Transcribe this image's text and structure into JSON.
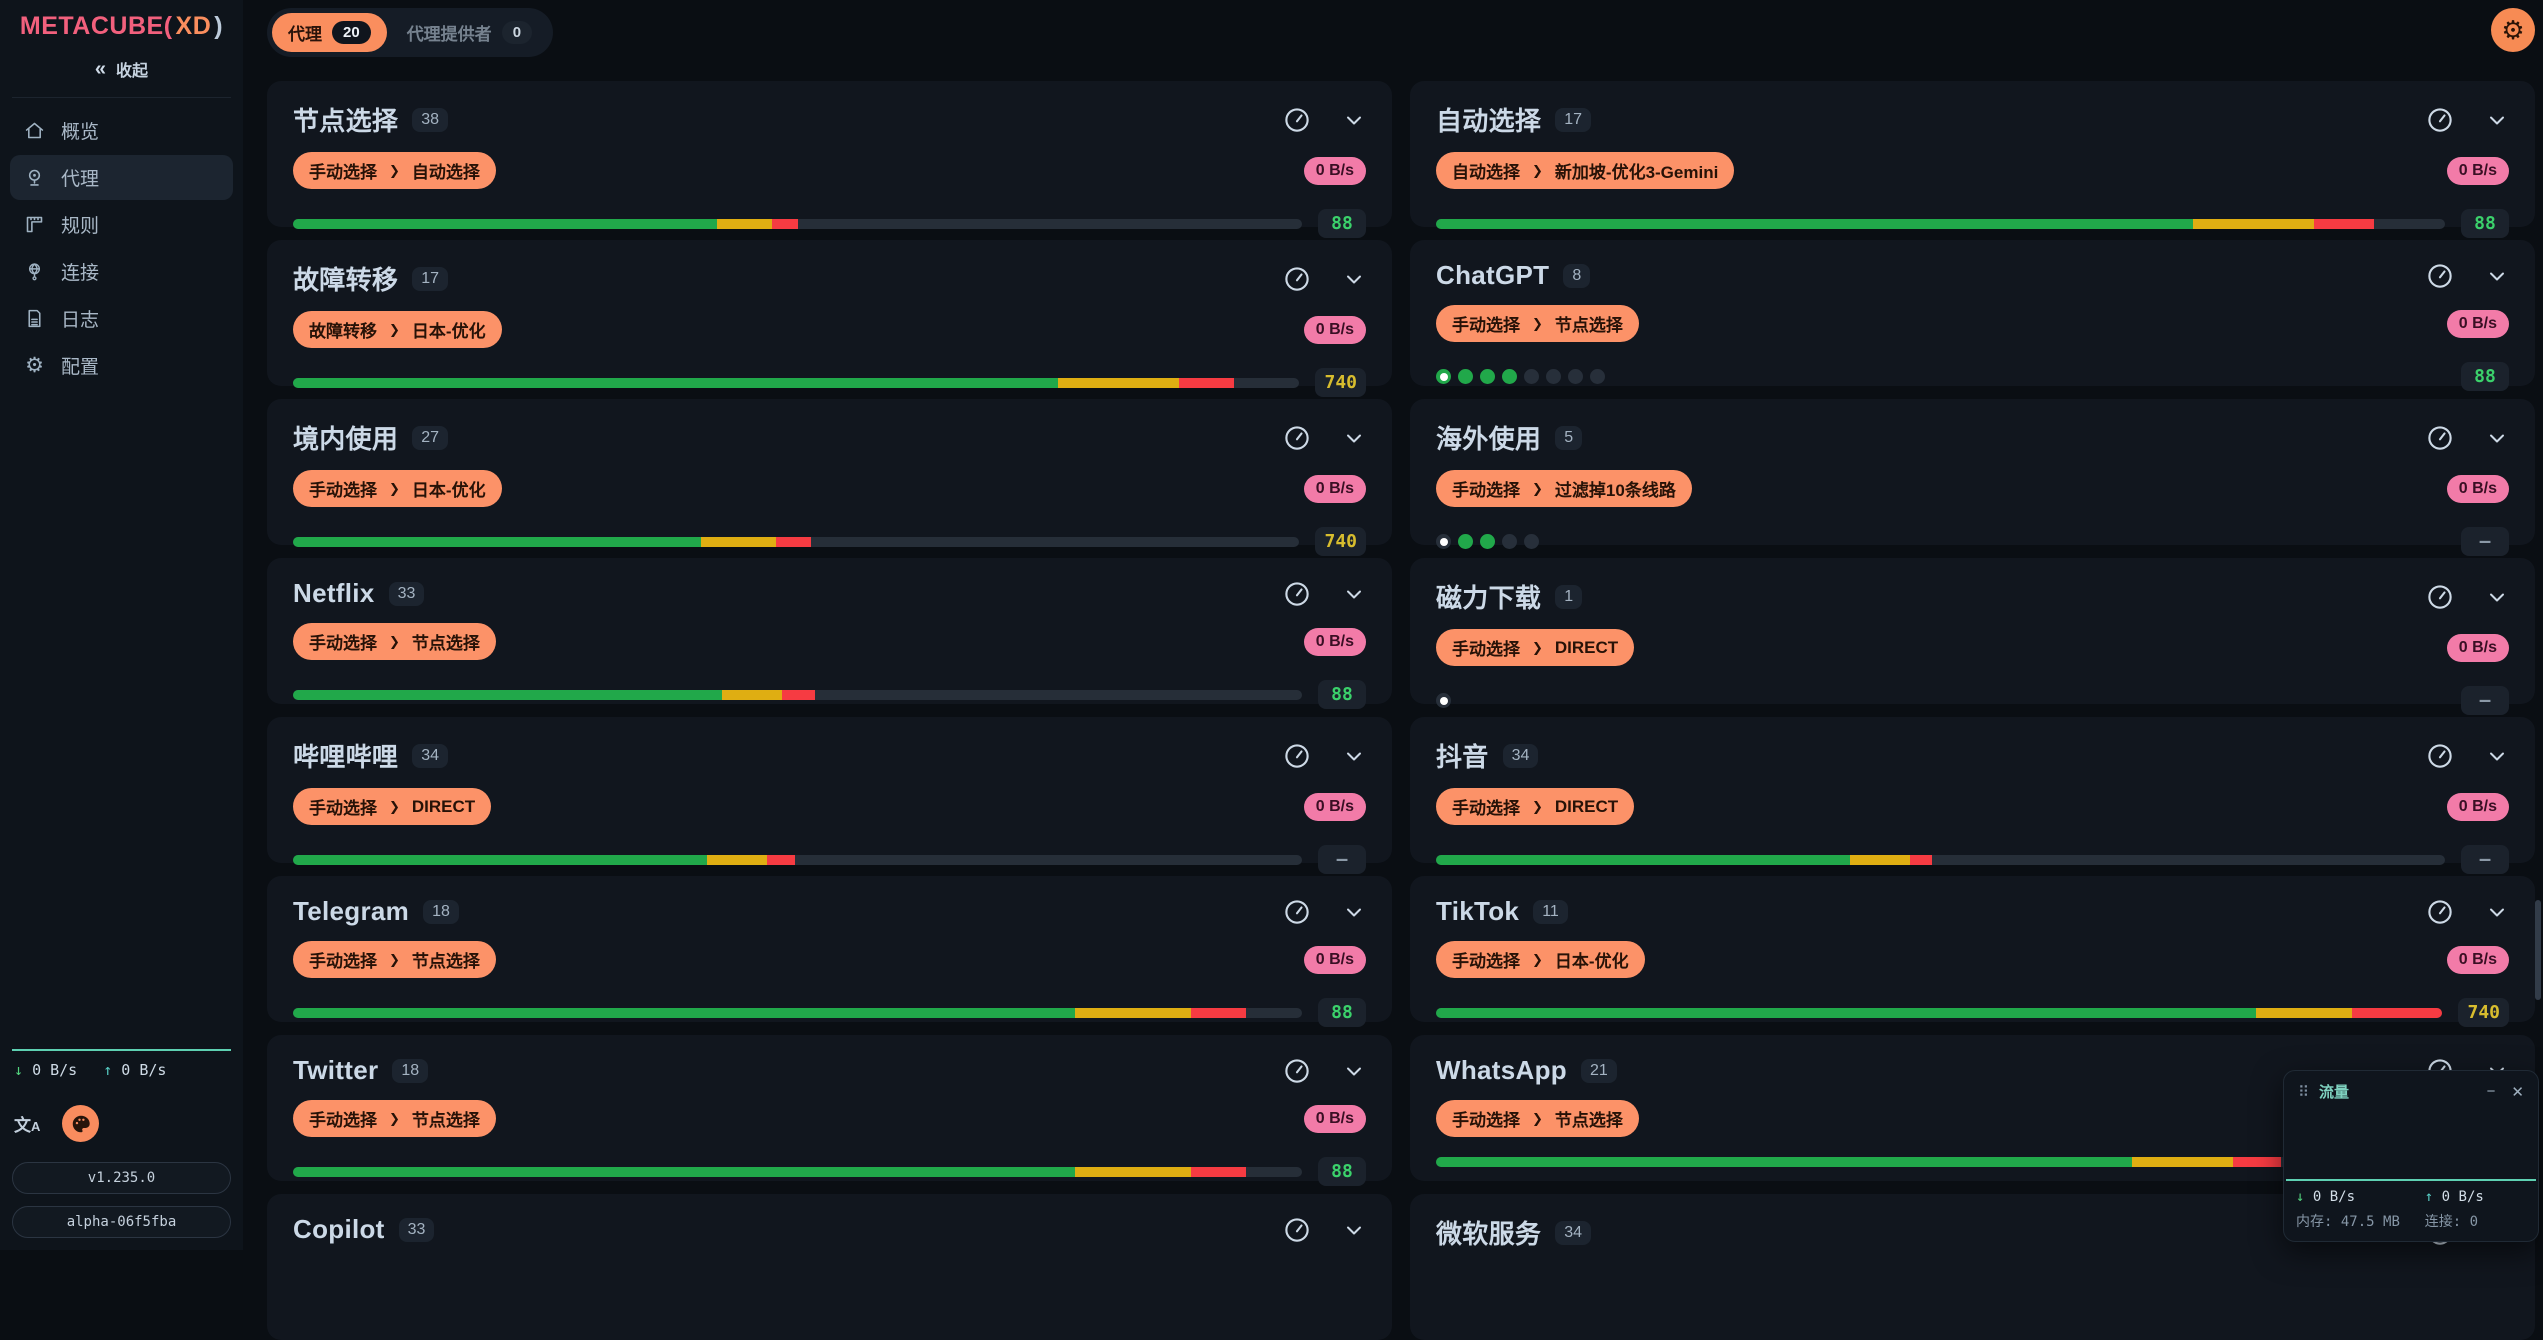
{
  "ui": {
    "selector_arrow": "❯",
    "collapse_icon": "«",
    "down_arrow": "↓",
    "up_arrow": "↑",
    "minimize_icon": "−",
    "close_icon": "✕",
    "drag_handle_icon": "⠿",
    "gear_glyph": "⚙"
  },
  "colors": {
    "accent": "#fa8e5e",
    "pink_badge": "#f27ba8",
    "logo_pink": "#f2607d",
    "bar_green": "#21a84a",
    "bar_yellow": "#dfae12",
    "bar_red": "#f63b42",
    "teal": "#5ed0b2"
  },
  "sidebar": {
    "logo": {
      "part1": "METACUBE(",
      "part2": "XD",
      "part3": ")"
    },
    "collapse_label": "收起",
    "items": [
      {
        "label": "概览",
        "icon": "home-icon",
        "active": false
      },
      {
        "label": "代理",
        "icon": "proxies-icon",
        "active": true
      },
      {
        "label": "规则",
        "icon": "rules-icon",
        "active": false
      },
      {
        "label": "连接",
        "icon": "connections-icon",
        "active": false
      },
      {
        "label": "日志",
        "icon": "logs-icon",
        "active": false
      },
      {
        "label": "配置",
        "icon": "config-icon",
        "active": false
      }
    ],
    "footer": {
      "down_speed": "0 B/s",
      "up_speed": "0 B/s",
      "version": "v1.235.0",
      "build": "alpha-06f5fba"
    }
  },
  "header": {
    "tabs": [
      {
        "label": "代理",
        "count": "20",
        "active": true
      },
      {
        "label": "代理提供者",
        "count": "0",
        "active": false
      }
    ]
  },
  "cards": [
    {
      "title": "节点选择",
      "count": "38",
      "selector_from": "手动选择",
      "selector_to": "自动选择",
      "speed": "0 B/s",
      "indicator": "bar",
      "segments": {
        "green": 42,
        "yellow": 5.5,
        "red": 2.6
      },
      "value": "88",
      "value_color": "green"
    },
    {
      "title": "自动选择",
      "count": "17",
      "selector_from": "自动选择",
      "selector_to": "新加坡-优化3-Gemini",
      "speed": "0 B/s",
      "indicator": "bar",
      "segments": {
        "green": 75,
        "yellow": 12,
        "red": 6
      },
      "value": "88",
      "value_color": "green"
    },
    {
      "title": "故障转移",
      "count": "17",
      "selector_from": "故障转移",
      "selector_to": "日本-优化",
      "speed": "0 B/s",
      "indicator": "bar",
      "segments": {
        "green": 76,
        "yellow": 12,
        "red": 5.5
      },
      "value": "740",
      "value_color": "yellow"
    },
    {
      "title": "ChatGPT",
      "count": "8",
      "selector_from": "手动选择",
      "selector_to": "节点选择",
      "speed": "0 B/s",
      "indicator": "dots",
      "dots": [
        "selected-green",
        "green",
        "green",
        "green",
        "gray",
        "gray",
        "gray",
        "gray"
      ],
      "value": "88",
      "value_color": "green"
    },
    {
      "title": "境内使用",
      "count": "27",
      "selector_from": "手动选择",
      "selector_to": "日本-优化",
      "speed": "0 B/s",
      "indicator": "bar",
      "segments": {
        "green": 40.5,
        "yellow": 7.5,
        "red": 3.5
      },
      "value": "740",
      "value_color": "yellow"
    },
    {
      "title": "海外使用",
      "count": "5",
      "selector_from": "手动选择",
      "selector_to": "过滤掉10条线路",
      "speed": "0 B/s",
      "indicator": "dots",
      "dots": [
        "selected-gray",
        "green",
        "green",
        "gray",
        "gray"
      ],
      "value": "—",
      "value_color": "gray"
    },
    {
      "title": "Netflix",
      "count": "33",
      "selector_from": "手动选择",
      "selector_to": "节点选择",
      "speed": "0 B/s",
      "indicator": "bar",
      "segments": {
        "green": 42.5,
        "yellow": 6,
        "red": 3.2
      },
      "value": "88",
      "value_color": "green"
    },
    {
      "title": "磁力下载",
      "count": "1",
      "selector_from": "手动选择",
      "selector_to": "DIRECT",
      "speed": "0 B/s",
      "indicator": "dots",
      "dots": [
        "selected-gray"
      ],
      "value": "—",
      "value_color": "gray"
    },
    {
      "title": "哔哩哔哩",
      "count": "34",
      "selector_from": "手动选择",
      "selector_to": "DIRECT",
      "speed": "0 B/s",
      "indicator": "bar",
      "segments": {
        "green": 41,
        "yellow": 6,
        "red": 2.8
      },
      "value": "—",
      "value_color": "gray"
    },
    {
      "title": "抖音",
      "count": "34",
      "selector_from": "手动选择",
      "selector_to": "DIRECT",
      "speed": "0 B/s",
      "indicator": "bar",
      "segments": {
        "green": 41,
        "yellow": 6,
        "red": 2.2
      },
      "value": "—",
      "value_color": "gray"
    },
    {
      "title": "Telegram",
      "count": "18",
      "selector_from": "手动选择",
      "selector_to": "节点选择",
      "speed": "0 B/s",
      "indicator": "bar",
      "segments": {
        "green": 77.5,
        "yellow": 11.5,
        "red": 5.5
      },
      "value": "88",
      "value_color": "green"
    },
    {
      "title": "TikTok",
      "count": "11",
      "selector_from": "手动选择",
      "selector_to": "日本-优化",
      "speed": "0 B/s",
      "indicator": "bar",
      "segments": {
        "green": 81.5,
        "yellow": 9.5,
        "red": 9
      },
      "value": "740",
      "value_color": "yellow"
    },
    {
      "title": "Twitter",
      "count": "18",
      "selector_from": "手动选择",
      "selector_to": "节点选择",
      "speed": "0 B/s",
      "indicator": "bar",
      "segments": {
        "green": 77.5,
        "yellow": 11.5,
        "red": 5.5
      },
      "value": "88",
      "value_color": "green"
    },
    {
      "title": "WhatsApp",
      "count": "21",
      "selector_from": "手动选择",
      "selector_to": "节点选择",
      "speed": "0 B/s",
      "indicator": "bar",
      "segments": {
        "green": 69,
        "yellow": 10,
        "red": 4.7
      },
      "value": "",
      "value_color": "gray"
    },
    {
      "title": "Copilot",
      "count": "33",
      "partial": true
    },
    {
      "title": "微软服务",
      "count": "34",
      "partial": true
    }
  ],
  "traffic_panel": {
    "title": "流量",
    "down_speed": "0 B/s",
    "up_speed": "0 B/s",
    "memory_label": "内存:",
    "memory_value": "47.5 MB",
    "connections_label": "连接:",
    "connections_value": "0"
  }
}
